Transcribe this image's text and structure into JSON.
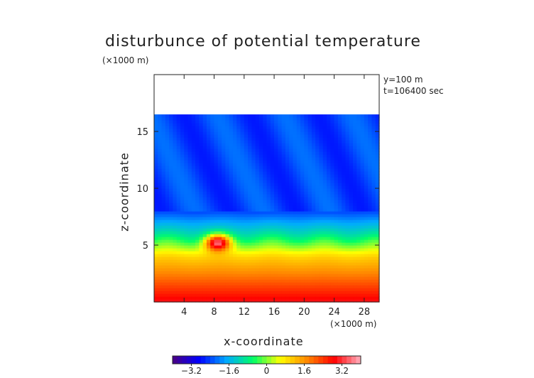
{
  "chart_data": {
    "type": "heatmap",
    "title": "disturbunce of potential temperature",
    "xlabel": "x-coordinate",
    "ylabel": "z-coordinate",
    "x_unit": "(×1000 m)",
    "y_unit": "(×1000 m)",
    "annotations": [
      "y=100 m",
      "t=106400 sec"
    ],
    "xlim": [
      0,
      30
    ],
    "ylim": [
      0,
      20
    ],
    "x_ticks": [
      "4",
      "8",
      "12",
      "16",
      "20",
      "24",
      "28"
    ],
    "y_ticks": [
      "5",
      "10",
      "15"
    ],
    "x_tick_values": [
      4,
      8,
      12,
      16,
      20,
      24,
      28
    ],
    "y_tick_values": [
      5,
      10,
      15
    ],
    "colorbar": {
      "range": [
        -4,
        4
      ],
      "ticks": [
        "−3.2",
        "−1.6",
        "0",
        "1.6",
        "3.2"
      ],
      "tick_values": [
        -3.2,
        -1.6,
        0,
        1.6,
        3.2
      ],
      "colors": [
        "#4b0082",
        "#0000ff",
        "#00aaff",
        "#00ff66",
        "#ffff00",
        "#ff8800",
        "#ff0000",
        "#ffb0c0"
      ]
    },
    "field_summary": {
      "surface_value": 3.0,
      "value_at_4km": 1.0,
      "value_at_6km": -1.0,
      "upper_layer_value": -2.4,
      "top_boundary_km": 16.5,
      "warm_bubble": {
        "x_km": 8.5,
        "z_km": 5.2,
        "peak_value": 3.6
      }
    }
  }
}
